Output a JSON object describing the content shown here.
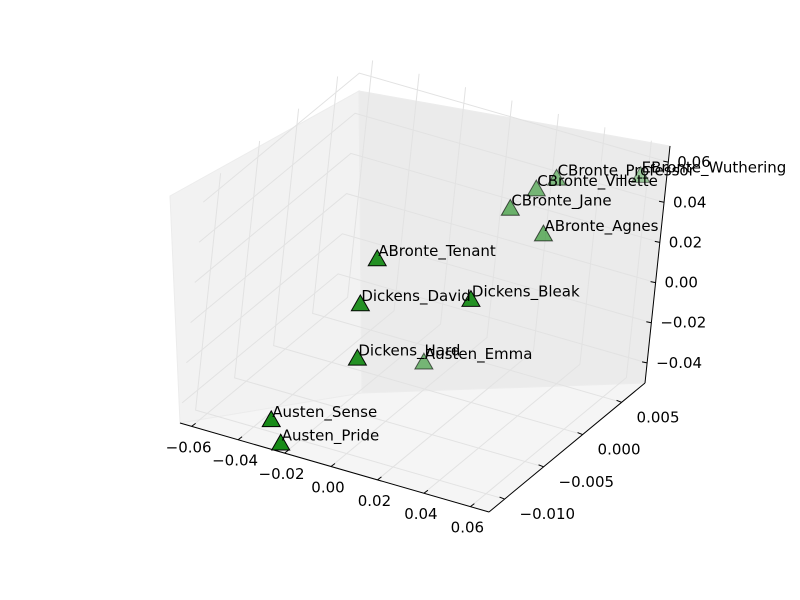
{
  "chart_data": {
    "type": "scatter",
    "projection": "3d",
    "title": "",
    "xlabel": "",
    "ylabel": "",
    "zlabel": "",
    "marker": "triangle",
    "marker_color": "#008000",
    "x_ticks": [
      -0.06,
      -0.04,
      -0.02,
      0.0,
      0.02,
      0.04,
      0.06
    ],
    "x_tick_labels": [
      "−0.06",
      "−0.04",
      "−0.02",
      "0.00",
      "0.02",
      "0.04",
      "0.06"
    ],
    "y_ticks": [
      -0.01,
      -0.005,
      0.0,
      0.005
    ],
    "y_tick_labels": [
      "−0.010",
      "−0.005",
      "0.000",
      "0.005"
    ],
    "z_ticks": [
      -0.04,
      -0.02,
      0.0,
      0.02,
      0.04,
      0.06
    ],
    "z_tick_labels": [
      "−0.04",
      "−0.02",
      "0.00",
      "0.02",
      "0.04",
      "0.06"
    ],
    "xlim": [
      -0.065,
      0.068
    ],
    "ylim": [
      -0.012,
      0.008
    ],
    "zlim": [
      -0.05,
      0.068
    ],
    "points": [
      {
        "label": "EBronte_Wuthering",
        "x": 0.063,
        "y": 0.006,
        "z": 0.058,
        "alpha": 0.35
      },
      {
        "label": "CBronte_Professor",
        "x": 0.028,
        "y": 0.006,
        "z": 0.045,
        "alpha": 0.45
      },
      {
        "label": "CBronte_Villette",
        "x": 0.02,
        "y": 0.006,
        "z": 0.037,
        "alpha": 0.5
      },
      {
        "label": "CBronte_Jane",
        "x": 0.01,
        "y": 0.006,
        "z": 0.024,
        "alpha": 0.55
      },
      {
        "label": "ABronte_Agnes",
        "x": 0.022,
        "y": 0.007,
        "z": 0.012,
        "alpha": 0.55
      },
      {
        "label": "ABronte_Tenant",
        "x": -0.03,
        "y": 0.0015,
        "z": 0.0,
        "alpha": 0.85
      },
      {
        "label": "Dickens_Bleak",
        "x": 0.005,
        "y": 0.0035,
        "z": -0.015,
        "alpha": 0.85
      },
      {
        "label": "Dickens_David",
        "x": -0.03,
        "y": -0.0002,
        "z": -0.017,
        "alpha": 0.85
      },
      {
        "label": "Austen_Emma",
        "x": 0.0,
        "y": -0.0005,
        "z": -0.035,
        "alpha": 0.5
      },
      {
        "label": "Dickens_Hard",
        "x": -0.022,
        "y": -0.0025,
        "z": -0.034,
        "alpha": 0.85
      },
      {
        "label": "Austen_Sense",
        "x": -0.03,
        "y": -0.011,
        "z": -0.04,
        "alpha": 0.9
      },
      {
        "label": "Austen_Pride",
        "x": -0.025,
        "y": -0.011,
        "z": -0.05,
        "alpha": 0.9
      }
    ]
  }
}
